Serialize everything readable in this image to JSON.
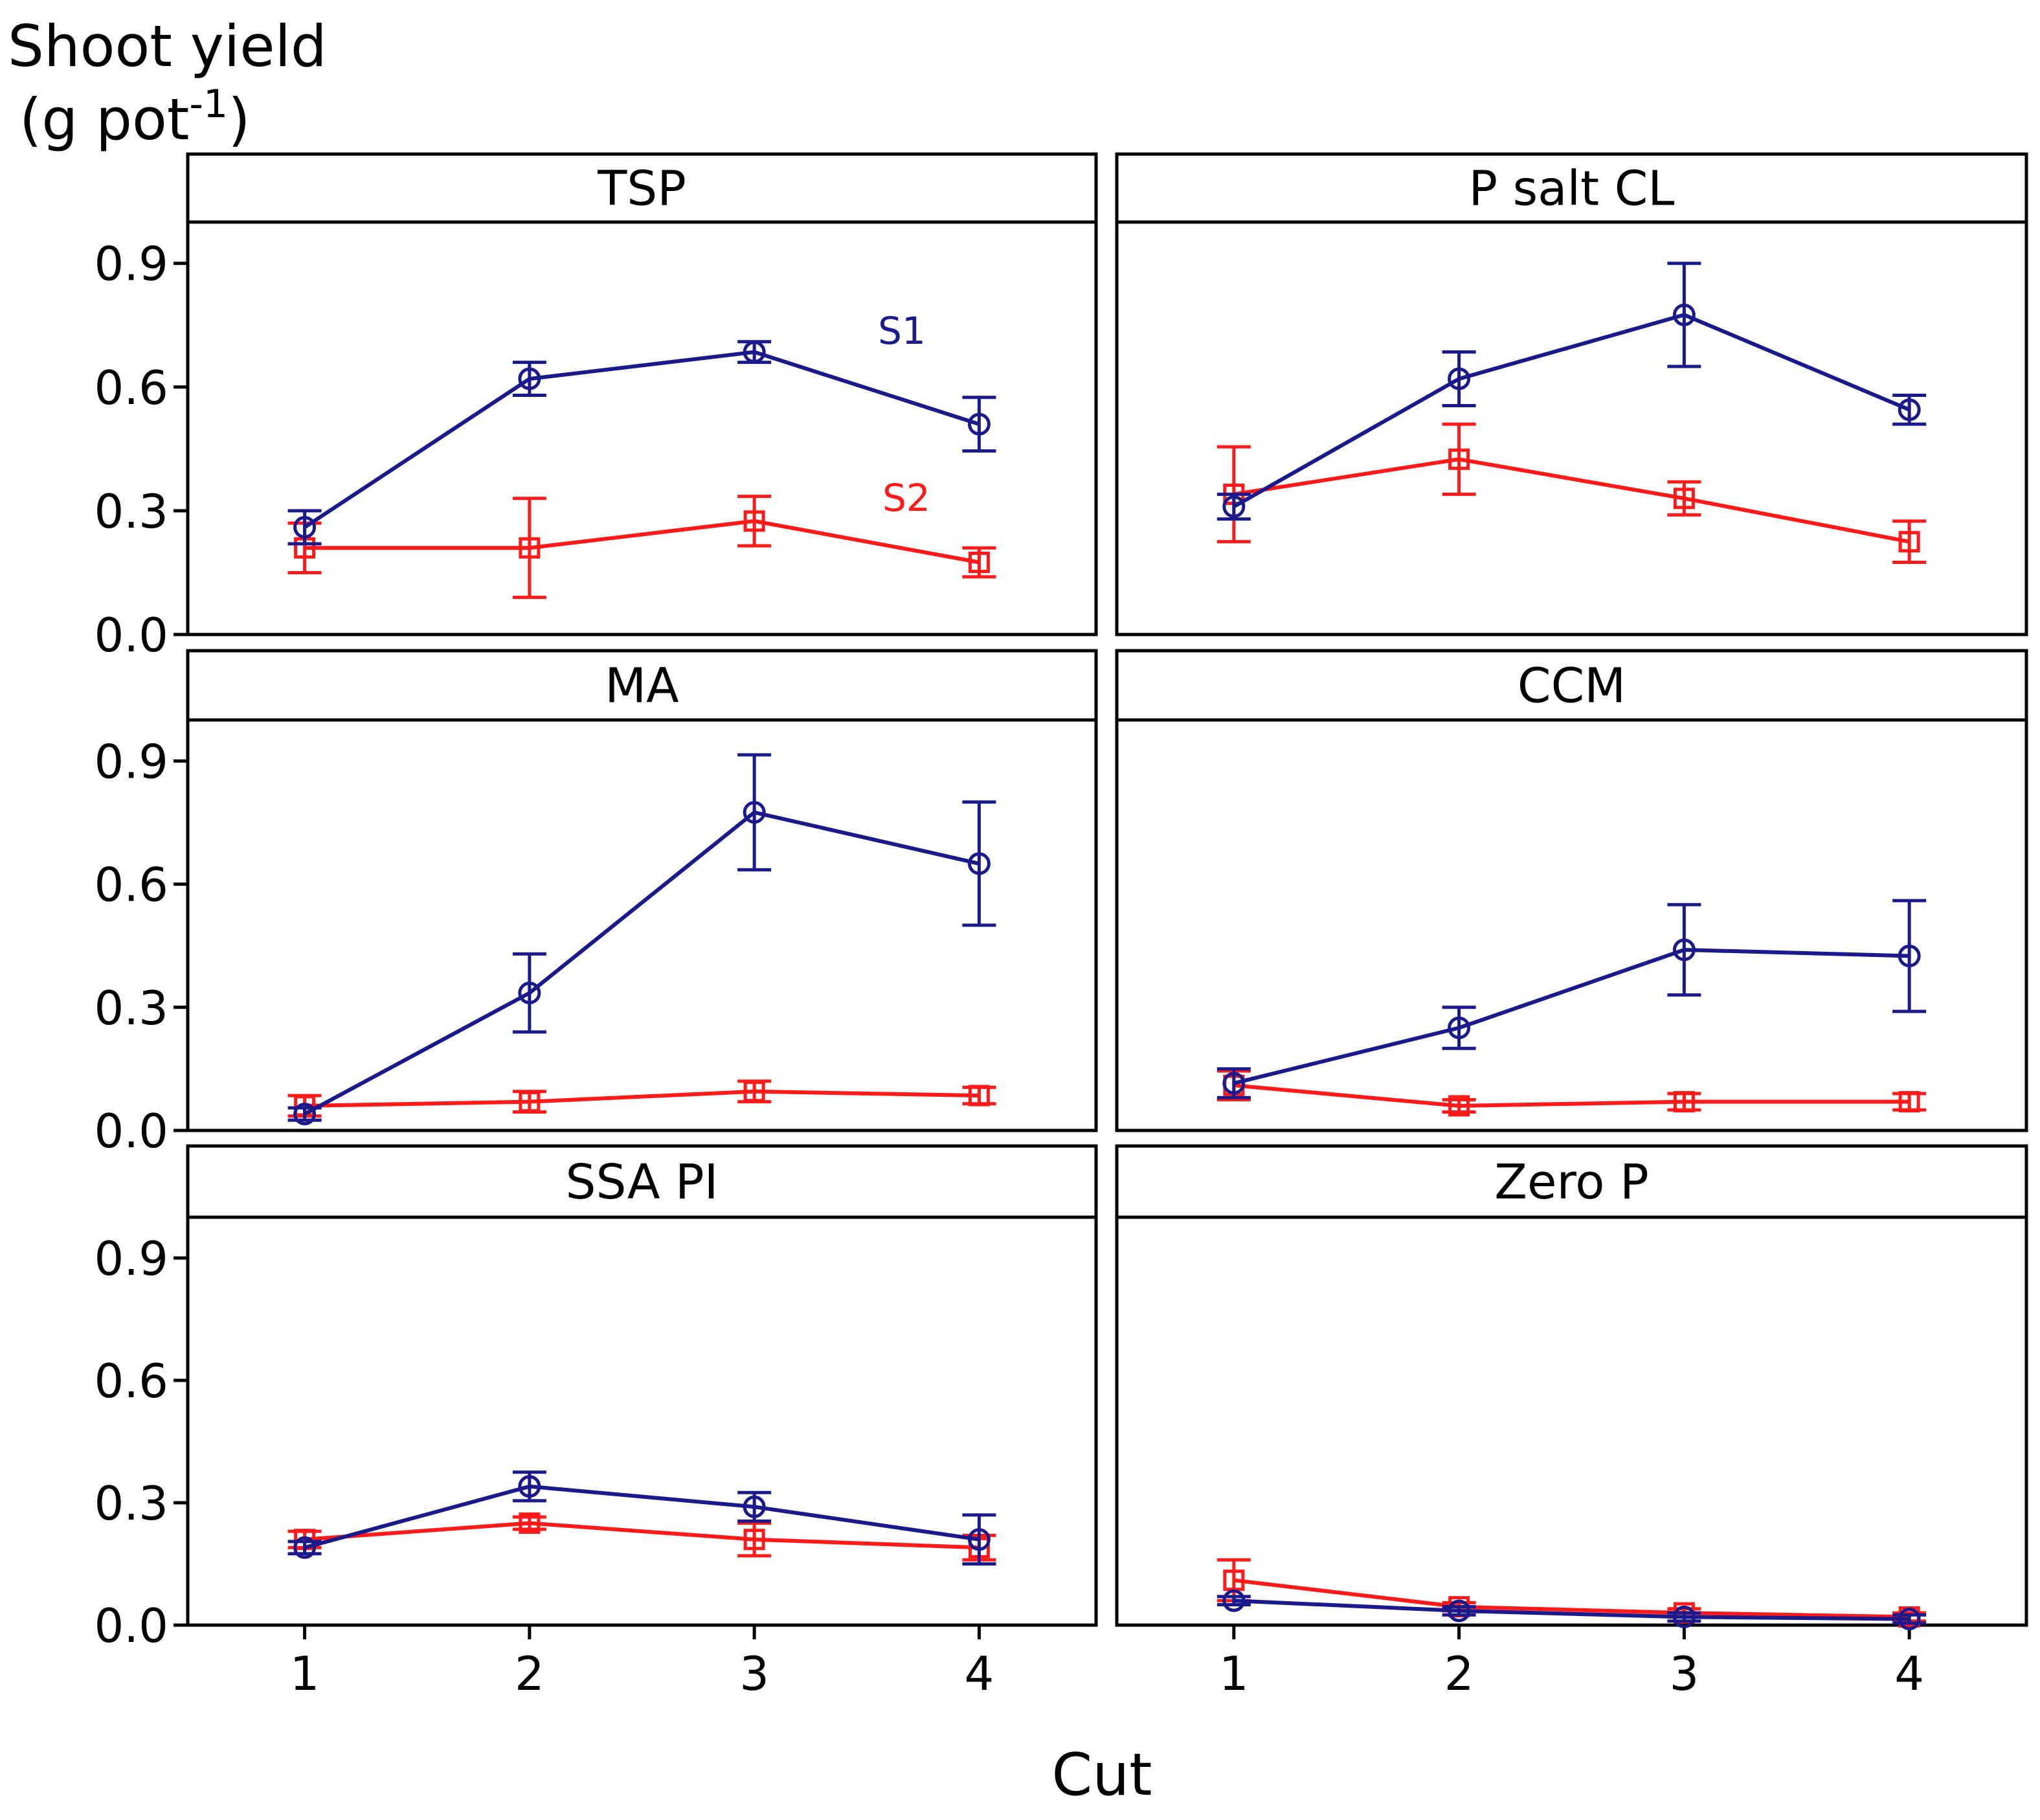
{
  "chart_data": {
    "type": "line",
    "ylabel_line1": "Shoot yield",
    "ylabel_line2_prefix": "(g pot",
    "ylabel_superscript": "-1",
    "ylabel_line2_suffix": ")",
    "xlabel": "Cut",
    "x": [
      1,
      2,
      3,
      4
    ],
    "x_tick_labels": [
      "1",
      "2",
      "3",
      "4"
    ],
    "ylim": [
      0.0,
      1.0
    ],
    "y_ticks": [
      0.0,
      0.3,
      0.6,
      0.9
    ],
    "y_tick_labels": [
      "0.0",
      "0.3",
      "0.6",
      "0.9"
    ],
    "series_styles": [
      {
        "name": "S1",
        "color": "#1a1a8c",
        "marker": "circle"
      },
      {
        "name": "S2",
        "color": "#ff1a1a",
        "marker": "square"
      }
    ],
    "panels": [
      {
        "title": "TSP",
        "series": [
          {
            "name": "S1",
            "values": [
              0.26,
              0.62,
              0.685,
              0.51
            ],
            "err": [
              0.04,
              0.04,
              0.025,
              0.065
            ]
          },
          {
            "name": "S2",
            "values": [
              0.21,
              0.21,
              0.275,
              0.175
            ],
            "err": [
              0.06,
              0.12,
              0.06,
              0.035
            ]
          }
        ],
        "annotations": [
          {
            "text": "S1",
            "series": "S1",
            "x": 3.55,
            "y": 0.705
          },
          {
            "text": "S2",
            "series": "S2",
            "x": 3.57,
            "y": 0.3
          }
        ]
      },
      {
        "title": "P salt CL",
        "series": [
          {
            "name": "S1",
            "values": [
              0.31,
              0.62,
              0.775,
              0.545
            ],
            "err": [
              0.03,
              0.065,
              0.125,
              0.035
            ]
          },
          {
            "name": "S2",
            "values": [
              0.34,
              0.425,
              0.33,
              0.225
            ],
            "err": [
              0.115,
              0.085,
              0.04,
              0.05
            ]
          }
        ],
        "annotations": []
      },
      {
        "title": "MA",
        "series": [
          {
            "name": "S1",
            "values": [
              0.04,
              0.335,
              0.775,
              0.65
            ],
            "err": [
              0.015,
              0.095,
              0.14,
              0.15
            ]
          },
          {
            "name": "S2",
            "values": [
              0.06,
              0.07,
              0.095,
              0.085
            ],
            "err": [
              0.025,
              0.025,
              0.025,
              0.02
            ]
          }
        ],
        "annotations": []
      },
      {
        "title": "CCM",
        "series": [
          {
            "name": "S1",
            "values": [
              0.115,
              0.25,
              0.44,
              0.425
            ],
            "err": [
              0.035,
              0.05,
              0.11,
              0.135
            ]
          },
          {
            "name": "S2",
            "values": [
              0.11,
              0.06,
              0.07,
              0.07
            ],
            "err": [
              0.035,
              0.015,
              0.02,
              0.02
            ]
          }
        ],
        "annotations": []
      },
      {
        "title": "SSA PI",
        "series": [
          {
            "name": "S1",
            "values": [
              0.19,
              0.34,
              0.29,
              0.21
            ],
            "err": [
              0.015,
              0.035,
              0.035,
              0.06
            ]
          },
          {
            "name": "S2",
            "values": [
              0.21,
              0.25,
              0.21,
              0.19
            ],
            "err": [
              0.02,
              0.015,
              0.04,
              0.03
            ]
          }
        ],
        "annotations": []
      },
      {
        "title": "Zero P",
        "series": [
          {
            "name": "S1",
            "values": [
              0.06,
              0.035,
              0.02,
              0.015
            ],
            "err": [
              0.01,
              0.01,
              0.01,
              0.01
            ]
          },
          {
            "name": "S2",
            "values": [
              0.11,
              0.045,
              0.03,
              0.02
            ],
            "err": [
              0.05,
              0.01,
              0.01,
              0.01
            ]
          }
        ],
        "annotations": []
      }
    ]
  }
}
